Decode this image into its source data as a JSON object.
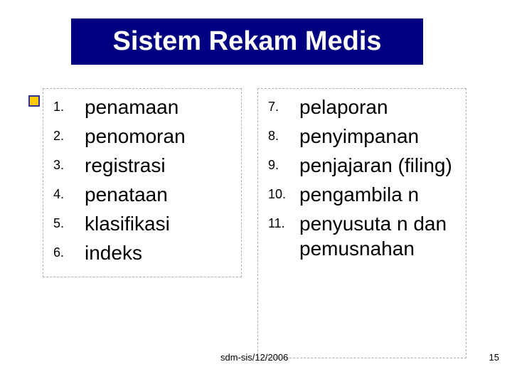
{
  "title": "Sistem Rekam Medis",
  "colors": {
    "title_bg": "#000080",
    "title_text": "#ffffff",
    "accent_fill": "#ffcc00",
    "accent_border": "#333399",
    "border_dash": "#b0b0b0",
    "text": "#000000",
    "background": "#ffffff"
  },
  "typography": {
    "title_fontsize": 38,
    "title_fontweight": "bold",
    "number_fontsize": 18,
    "item_fontsize": 28,
    "footer_fontsize": 13
  },
  "left_list": [
    {
      "n": "1.",
      "label": "penamaan"
    },
    {
      "n": "2.",
      "label": "penomoran"
    },
    {
      "n": "3.",
      "label": "registrasi"
    },
    {
      "n": "4.",
      "label": "penataan"
    },
    {
      "n": "5.",
      "label": "klasifikasi"
    },
    {
      "n": "6.",
      "label": "indeks"
    }
  ],
  "right_list": [
    {
      "n": "7.",
      "label": "pelaporan"
    },
    {
      "n": "8.",
      "label": "penyimpanan"
    },
    {
      "n": "9.",
      "label": "penjajaran (filing)"
    },
    {
      "n": "10.",
      "label": "pengambila n"
    },
    {
      "n": "11.",
      "label": "penyusuta n dan pemusnahan"
    }
  ],
  "footer": "sdm-sis/12/2006",
  "page_number": "15"
}
